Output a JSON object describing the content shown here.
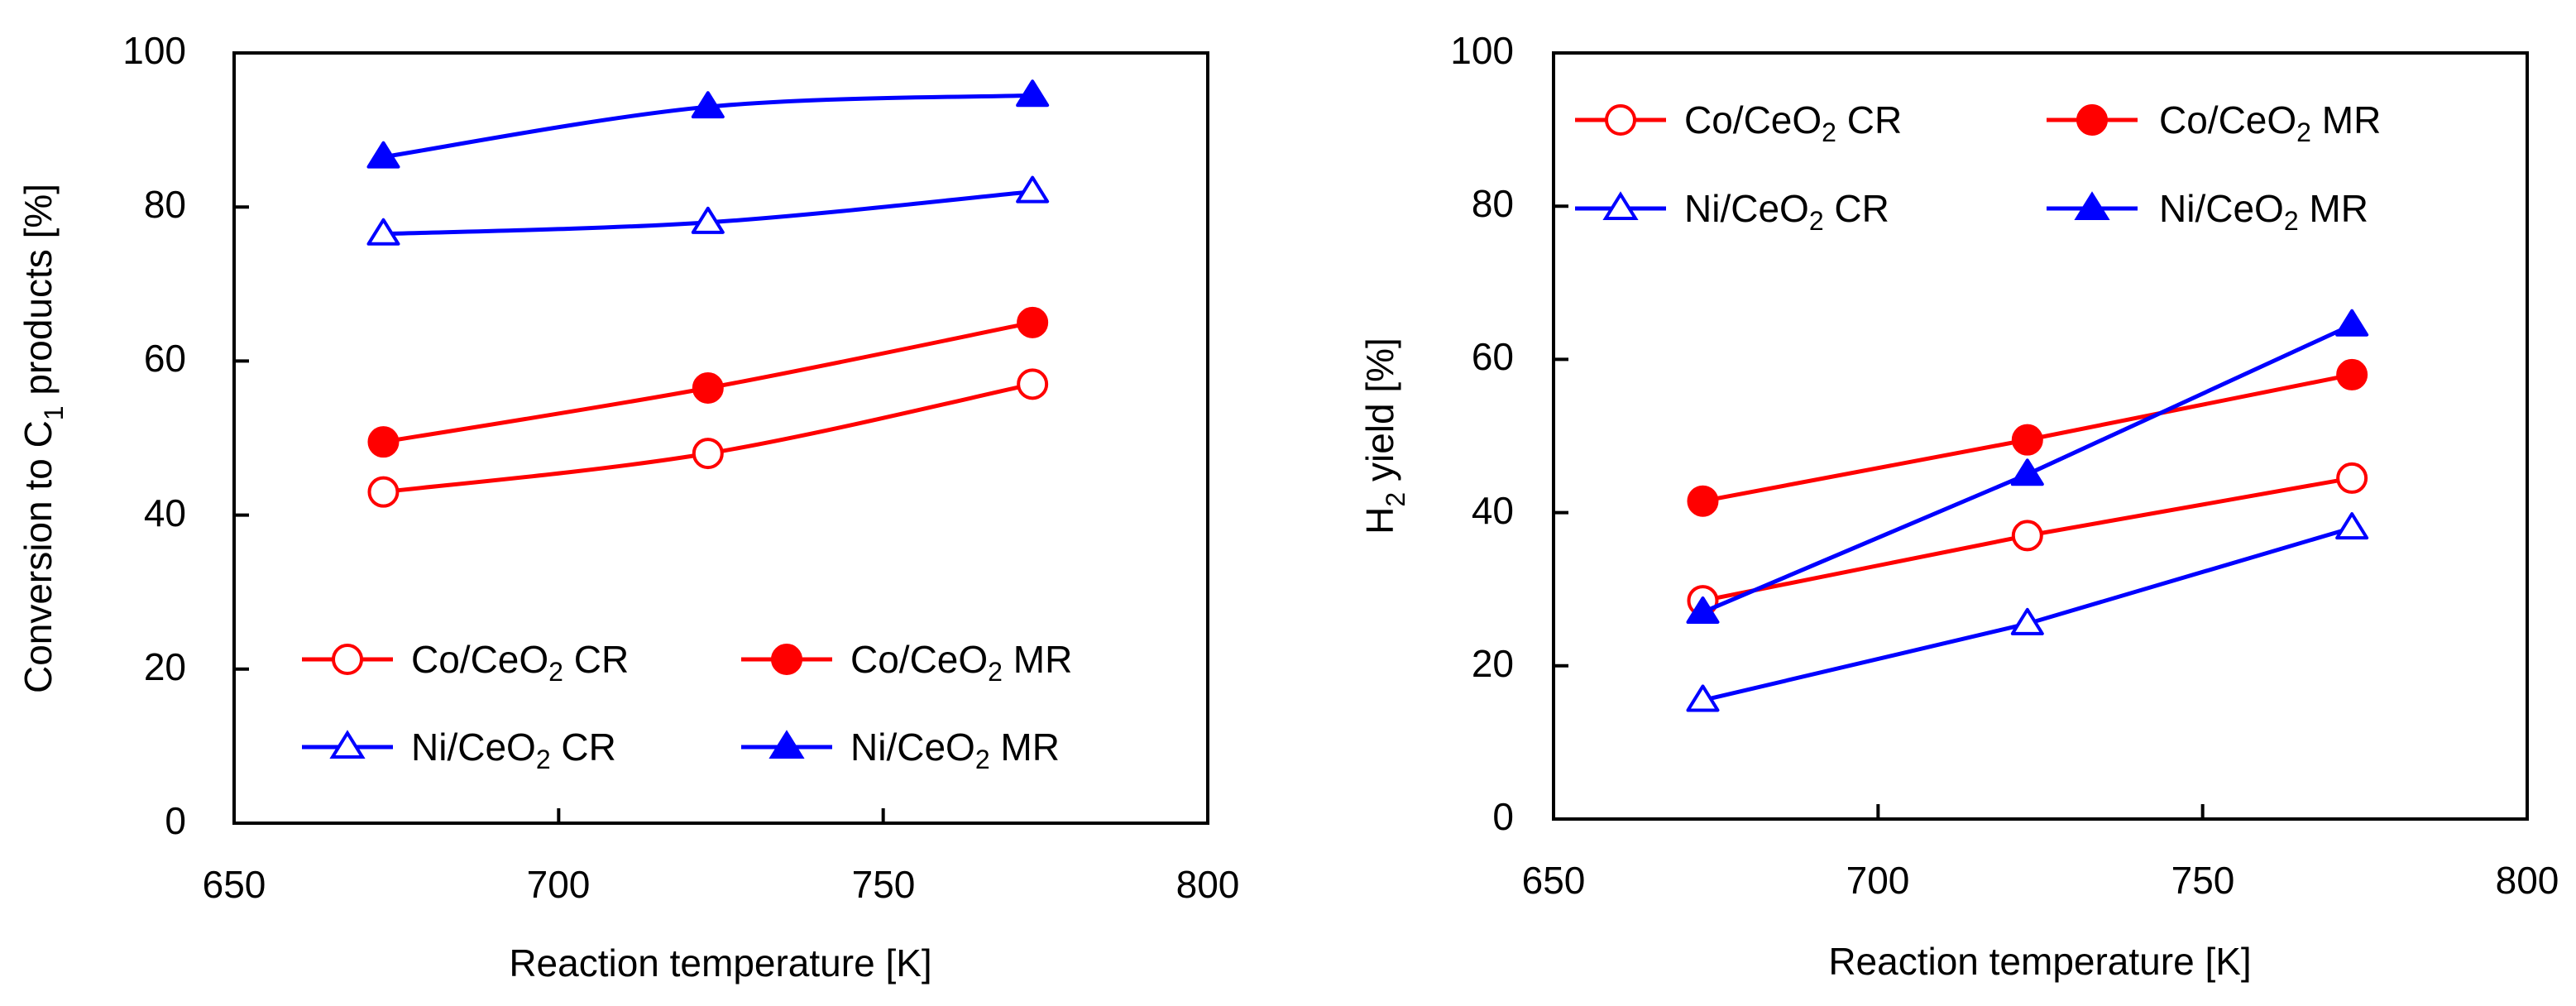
{
  "colors": {
    "co": "#ff0000",
    "ni": "#0000ff",
    "axis": "#000000",
    "background": "#ffffff"
  },
  "chart_data": [
    {
      "type": "line",
      "xlabel": "Reaction temperature [K]",
      "ylabel": {
        "prefix": "Conversion to C",
        "sub": "1",
        "suffix": " products [%]"
      },
      "xlim": [
        650,
        800
      ],
      "ylim": [
        0,
        100
      ],
      "xticks": [
        "650",
        "700",
        "750",
        "800"
      ],
      "yticks": [
        "0",
        "20",
        "40",
        "60",
        "80",
        "100"
      ],
      "x": [
        673,
        723,
        773
      ],
      "legend_placement": "bottom",
      "series": [
        {
          "key": "co_cr",
          "name": {
            "prefix": "Co/CeO",
            "sub": "2",
            "suffix": " CR"
          },
          "color": "#ff0000",
          "marker": "circle",
          "filled": false,
          "smooth": true,
          "values": [
            43,
            48,
            57
          ]
        },
        {
          "key": "co_mr",
          "name": {
            "prefix": "Co/CeO",
            "sub": "2",
            "suffix": " MR"
          },
          "color": "#ff0000",
          "marker": "circle",
          "filled": true,
          "smooth": true,
          "values": [
            49.5,
            56.5,
            65
          ]
        },
        {
          "key": "ni_cr",
          "name": {
            "prefix": "Ni/CeO",
            "sub": "2",
            "suffix": " CR"
          },
          "color": "#0000ff",
          "marker": "triangle",
          "filled": false,
          "smooth": true,
          "values": [
            76.5,
            78,
            82
          ]
        },
        {
          "key": "ni_mr",
          "name": {
            "prefix": "Ni/CeO",
            "sub": "2",
            "suffix": " MR"
          },
          "color": "#0000ff",
          "marker": "triangle",
          "filled": true,
          "smooth": true,
          "values": [
            86.5,
            93,
            94.5
          ]
        }
      ]
    },
    {
      "type": "line",
      "xlabel": "Reaction temperature [K]",
      "ylabel": {
        "prefix": "H",
        "sub": "2",
        "suffix": " yield [%]"
      },
      "xlim": [
        650,
        800
      ],
      "ylim": [
        0,
        100
      ],
      "xticks": [
        "650",
        "700",
        "750",
        "800"
      ],
      "yticks": [
        "0",
        "20",
        "40",
        "60",
        "80",
        "100"
      ],
      "x": [
        673,
        723,
        773
      ],
      "legend_placement": "top",
      "series": [
        {
          "key": "co_cr",
          "name": {
            "prefix": "Co/CeO",
            "sub": "2",
            "suffix": " CR"
          },
          "color": "#ff0000",
          "marker": "circle",
          "filled": false,
          "smooth": false,
          "values": [
            28.5,
            37,
            44.5
          ]
        },
        {
          "key": "co_mr",
          "name": {
            "prefix": "Co/CeO",
            "sub": "2",
            "suffix": " MR"
          },
          "color": "#ff0000",
          "marker": "circle",
          "filled": true,
          "smooth": false,
          "values": [
            41.5,
            49.5,
            58
          ]
        },
        {
          "key": "ni_cr",
          "name": {
            "prefix": "Ni/CeO",
            "sub": "2",
            "suffix": " CR"
          },
          "color": "#0000ff",
          "marker": "triangle",
          "filled": false,
          "smooth": false,
          "values": [
            15.5,
            25.5,
            38
          ]
        },
        {
          "key": "ni_mr",
          "name": {
            "prefix": "Ni/CeO",
            "sub": "2",
            "suffix": " MR"
          },
          "color": "#0000ff",
          "marker": "triangle",
          "filled": true,
          "smooth": false,
          "values": [
            27,
            45,
            64.5
          ]
        }
      ]
    }
  ]
}
